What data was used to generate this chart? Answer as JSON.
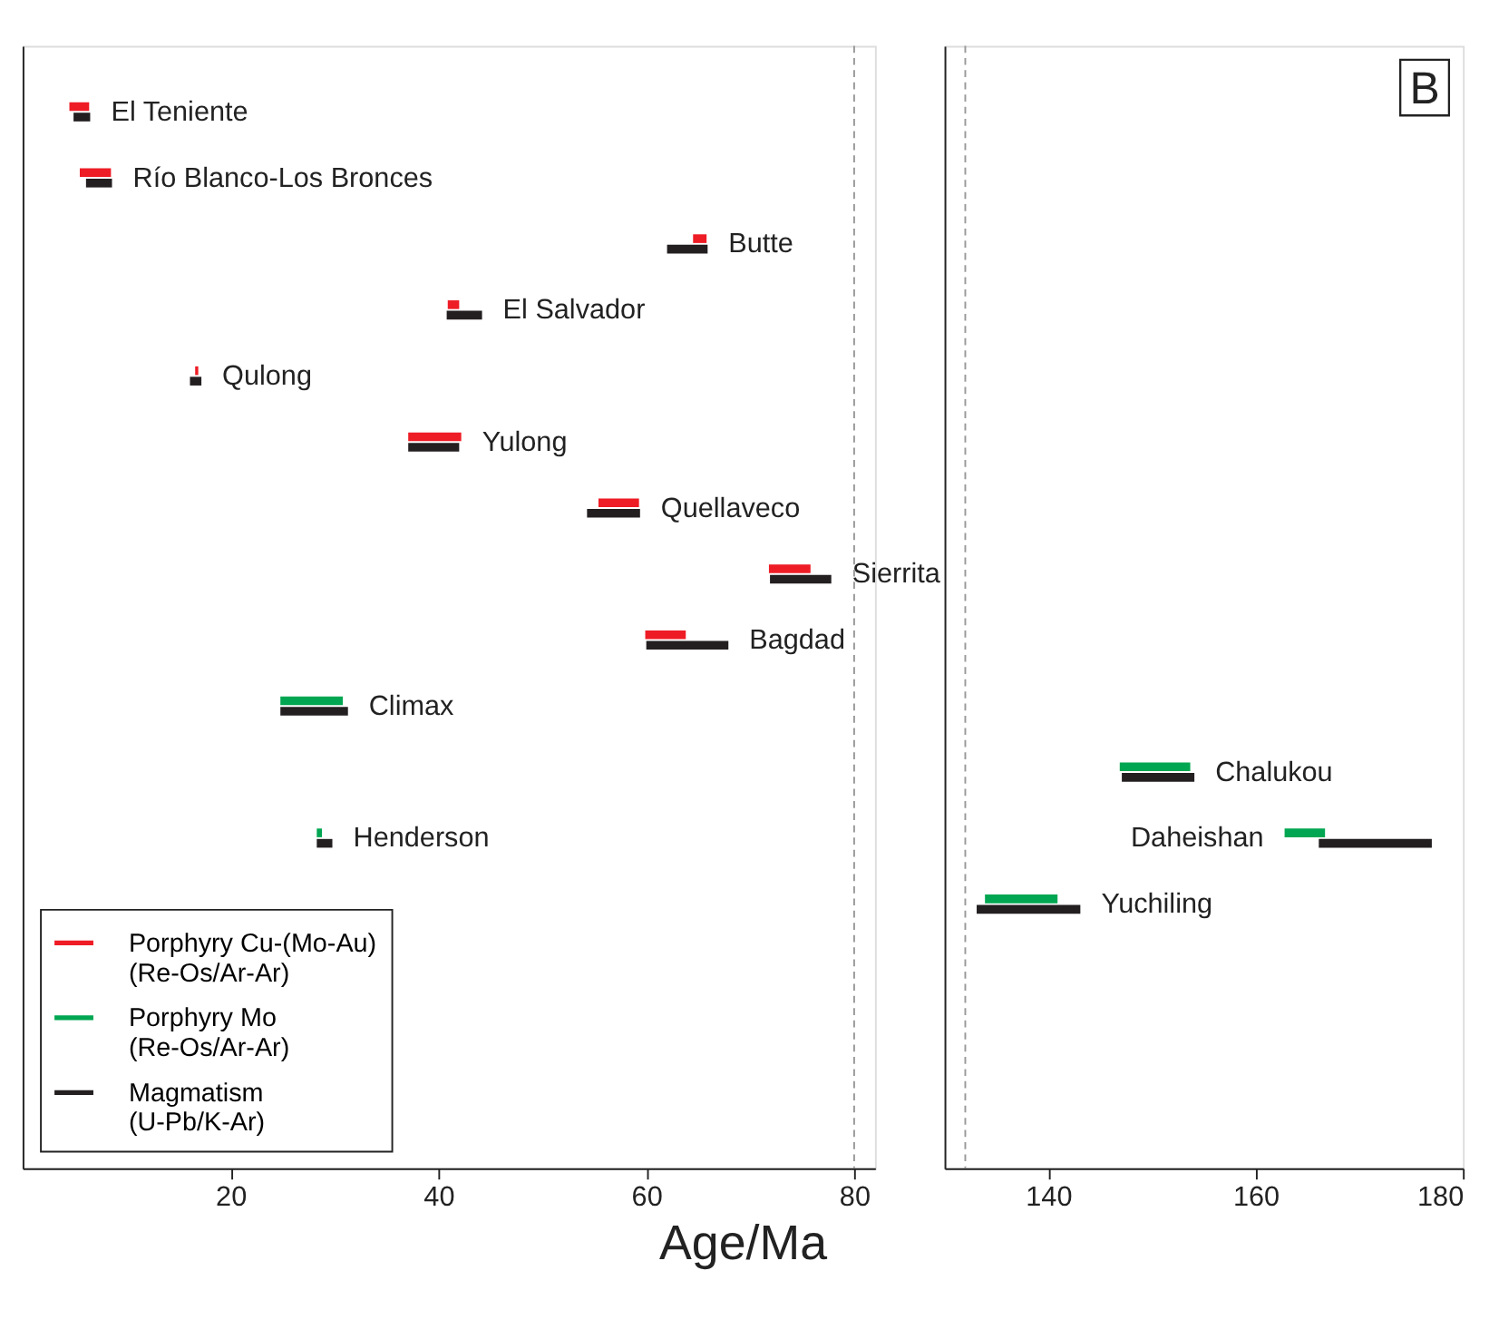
{
  "chart_data": [
    {
      "type": "bar",
      "orientation": "horizontal",
      "xlabel": "Age/Ma",
      "xlim": [
        0,
        82
      ],
      "xticks": [
        20,
        40,
        60,
        80
      ],
      "grid": false,
      "legend": "bottom left",
      "tick_labels": "x",
      "categories": [
        "El Teniente",
        "Río Blanco-Los Bronces",
        "Butte",
        "El Salvador",
        "Qulong",
        "Yulong",
        "Quellaveco",
        "Sierrita",
        "Bagdad",
        "Climax",
        null,
        "Henderson",
        null,
        null,
        null,
        null
      ],
      "series": [
        {
          "name": "Porphyry Cu-(Mo-Au)\n(Re-Os/Ar-Ar)",
          "color": "#ee1c25",
          "base": [
            4.5,
            5.5,
            64.5,
            40.9,
            16.6,
            37.1,
            55.4,
            71.8,
            59.9,
            null,
            null,
            null,
            null,
            null,
            null,
            null
          ],
          "values": [
            1.9,
            3.0,
            1.3,
            1.1,
            0.3,
            5.1,
            3.9,
            4.0,
            3.9,
            null,
            null,
            null,
            null,
            null,
            null,
            null
          ]
        },
        {
          "name": "Porphyry Mo\n(Re-Os/Ar-Ar)",
          "color": "#00a651",
          "base": [
            null,
            null,
            null,
            null,
            null,
            null,
            null,
            null,
            null,
            24.8,
            null,
            28.3,
            null,
            null,
            null,
            null
          ],
          "values": [
            null,
            null,
            null,
            null,
            null,
            null,
            null,
            null,
            null,
            6.0,
            null,
            0.5,
            null,
            null,
            null,
            null
          ]
        },
        {
          "name": "Magmatism\n(U-Pb/K-Ar)",
          "color": "#231f20",
          "base": [
            4.9,
            6.1,
            62.0,
            40.8,
            16.1,
            37.1,
            54.3,
            71.9,
            60.0,
            24.8,
            null,
            28.3,
            null,
            null,
            null,
            null
          ],
          "values": [
            1.6,
            2.5,
            3.9,
            3.4,
            1.1,
            4.9,
            5.1,
            5.9,
            7.9,
            6.5,
            null,
            1.5,
            null,
            null,
            null,
            null
          ]
        }
      ],
      "ref_lines": [
        {
          "axis": "x",
          "value": 80,
          "color": "#999999",
          "line_style": "dashed"
        }
      ]
    },
    {
      "type": "bar",
      "orientation": "horizontal",
      "xlim": [
        130,
        180
      ],
      "xticks": [
        140,
        160,
        180
      ],
      "grid": false,
      "legend": false,
      "tick_labels": "x",
      "categories": [
        null,
        null,
        null,
        null,
        null,
        null,
        null,
        null,
        null,
        null,
        "Chalukou",
        "Daheishan",
        "Yuchiling",
        null,
        null,
        null
      ],
      "series": [
        {
          "color": "#00a651",
          "base": [
            null,
            null,
            null,
            null,
            null,
            null,
            null,
            null,
            null,
            null,
            146.9,
            162.8,
            133.9,
            null,
            null,
            null
          ],
          "values": [
            null,
            null,
            null,
            null,
            null,
            null,
            null,
            null,
            null,
            null,
            6.8,
            3.9,
            7.0,
            null,
            null,
            null
          ]
        },
        {
          "color": "#231f20",
          "base": [
            null,
            null,
            null,
            null,
            null,
            null,
            null,
            null,
            null,
            null,
            147.1,
            166.1,
            133.1,
            null,
            null,
            null
          ],
          "values": [
            null,
            null,
            null,
            null,
            null,
            null,
            null,
            null,
            null,
            null,
            7.0,
            10.9,
            10.0,
            null,
            null,
            null
          ]
        }
      ],
      "ref_lines": [
        {
          "axis": "x",
          "value": 132,
          "color": "#999999",
          "line_style": "dashed"
        }
      ],
      "annotations": [
        "B"
      ]
    }
  ]
}
